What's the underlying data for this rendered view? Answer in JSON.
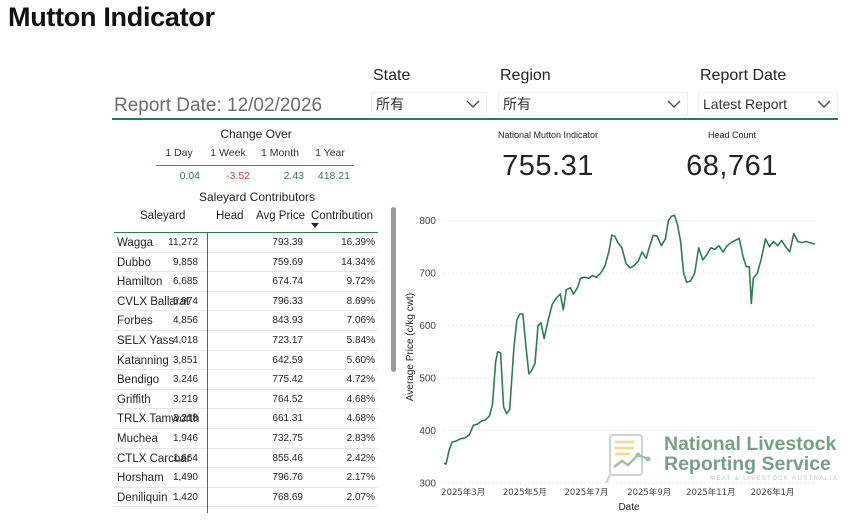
{
  "page": {
    "title": "Mutton Indicator"
  },
  "filters": {
    "state": {
      "label": "State",
      "value": "所有"
    },
    "region": {
      "label": "Region",
      "value": "所有"
    },
    "report_date": {
      "label": "Report Date",
      "value": "Latest Report"
    }
  },
  "report_date_text": "Report Date: 12/02/2026",
  "change_over": {
    "title": "Change Over",
    "headers": [
      "1 Day",
      "1 Week",
      "1 Month",
      "1 Year"
    ],
    "values": [
      "0.04",
      "-3.52",
      "2.43",
      "418.21"
    ],
    "value_colors": [
      "#2e7d4f",
      "#d0432f",
      "#2e7d4f",
      "#2e7d4f"
    ]
  },
  "kpis": {
    "indicator": {
      "label": "National Mutton Indicator",
      "value": "755.31"
    },
    "head_count": {
      "label": "Head Count",
      "value": "68,761"
    }
  },
  "table": {
    "title": "Saleyard Contributors",
    "columns": [
      "Saleyard",
      "Head",
      "Avg Price",
      "Contribution"
    ],
    "sorted_column": "Contribution",
    "rows": [
      [
        "Wagga",
        "11,272",
        "793.39",
        "16.39%"
      ],
      [
        "Dubbo",
        "9,858",
        "759.69",
        "14.34%"
      ],
      [
        "Hamilton",
        "6,685",
        "674.74",
        "9.72%"
      ],
      [
        "CVLX Ballarat",
        "5,974",
        "796.33",
        "8.69%"
      ],
      [
        "Forbes",
        "4,856",
        "843.93",
        "7.06%"
      ],
      [
        "SELX Yass",
        "4,018",
        "723.17",
        "5.84%"
      ],
      [
        "Katanning",
        "3,851",
        "642.59",
        "5.60%"
      ],
      [
        "Bendigo",
        "3,246",
        "775.42",
        "4.72%"
      ],
      [
        "Griffith",
        "3,219",
        "764.52",
        "4.68%"
      ],
      [
        "TRLX Tamworth",
        "3,218",
        "661.31",
        "4.68%"
      ],
      [
        "Muchea",
        "1,946",
        "732.75",
        "2.83%"
      ],
      [
        "CTLX Carcoar",
        "1,664",
        "855.46",
        "2.42%"
      ],
      [
        "Horsham",
        "1,490",
        "796.76",
        "2.17%"
      ],
      [
        "Deniliquin",
        "1,420",
        "768.69",
        "2.07%"
      ]
    ]
  },
  "chart_data": {
    "type": "line",
    "xlabel": "Date",
    "ylabel": "Average Price (c/kg cwt)",
    "ylim": [
      300,
      820
    ],
    "yticks": [
      300,
      400,
      500,
      600,
      700,
      800
    ],
    "xlim": [
      "2025-02-10",
      "2026-02-12"
    ],
    "xticks": [
      {
        "date": "2025-03-01",
        "label": "2025年3月"
      },
      {
        "date": "2025-05-01",
        "label": "2025年5月"
      },
      {
        "date": "2025-07-01",
        "label": "2025年7月"
      },
      {
        "date": "2025-09-01",
        "label": "2025年9月"
      },
      {
        "date": "2025-11-01",
        "label": "2025年11月"
      },
      {
        "date": "2026-01-01",
        "label": "2026年1月"
      }
    ],
    "grid": true,
    "line_color": "#2e7d4f",
    "series": [
      {
        "points": [
          [
            "2025-02-10",
            338
          ],
          [
            "2025-02-12",
            336
          ],
          [
            "2025-02-15",
            362
          ],
          [
            "2025-02-18",
            378
          ],
          [
            "2025-02-22",
            380
          ],
          [
            "2025-02-26",
            384
          ],
          [
            "2025-03-03",
            386
          ],
          [
            "2025-03-07",
            392
          ],
          [
            "2025-03-11",
            410
          ],
          [
            "2025-03-15",
            412
          ],
          [
            "2025-03-19",
            418
          ],
          [
            "2025-03-23",
            420
          ],
          [
            "2025-03-27",
            428
          ],
          [
            "2025-03-30",
            450
          ],
          [
            "2025-04-02",
            530
          ],
          [
            "2025-04-04",
            550
          ],
          [
            "2025-04-07",
            548
          ],
          [
            "2025-04-10",
            445
          ],
          [
            "2025-04-13",
            432
          ],
          [
            "2025-04-16",
            440
          ],
          [
            "2025-04-20",
            555
          ],
          [
            "2025-04-23",
            610
          ],
          [
            "2025-04-26",
            622
          ],
          [
            "2025-04-29",
            622
          ],
          [
            "2025-05-02",
            560
          ],
          [
            "2025-05-05",
            508
          ],
          [
            "2025-05-08",
            515
          ],
          [
            "2025-05-11",
            528
          ],
          [
            "2025-05-14",
            600
          ],
          [
            "2025-05-17",
            605
          ],
          [
            "2025-05-20",
            575
          ],
          [
            "2025-05-24",
            610
          ],
          [
            "2025-05-28",
            640
          ],
          [
            "2025-06-01",
            652
          ],
          [
            "2025-06-05",
            660
          ],
          [
            "2025-06-08",
            630
          ],
          [
            "2025-06-11",
            668
          ],
          [
            "2025-06-15",
            672
          ],
          [
            "2025-06-18",
            660
          ],
          [
            "2025-06-22",
            672
          ],
          [
            "2025-06-25",
            690
          ],
          [
            "2025-06-29",
            692
          ],
          [
            "2025-07-03",
            690
          ],
          [
            "2025-07-07",
            695
          ],
          [
            "2025-07-11",
            692
          ],
          [
            "2025-07-15",
            700
          ],
          [
            "2025-07-19",
            712
          ],
          [
            "2025-07-23",
            740
          ],
          [
            "2025-07-26",
            772
          ],
          [
            "2025-07-29",
            770
          ],
          [
            "2025-08-01",
            758
          ],
          [
            "2025-08-05",
            748
          ],
          [
            "2025-08-09",
            718
          ],
          [
            "2025-08-13",
            710
          ],
          [
            "2025-08-17",
            714
          ],
          [
            "2025-08-21",
            722
          ],
          [
            "2025-08-25",
            740
          ],
          [
            "2025-08-29",
            728
          ],
          [
            "2025-09-01",
            748
          ],
          [
            "2025-09-05",
            772
          ],
          [
            "2025-09-09",
            770
          ],
          [
            "2025-09-13",
            752
          ],
          [
            "2025-09-17",
            765
          ],
          [
            "2025-09-20",
            800
          ],
          [
            "2025-09-23",
            808
          ],
          [
            "2025-09-26",
            810
          ],
          [
            "2025-09-29",
            792
          ],
          [
            "2025-10-02",
            760
          ],
          [
            "2025-10-05",
            700
          ],
          [
            "2025-10-08",
            682
          ],
          [
            "2025-10-12",
            685
          ],
          [
            "2025-10-16",
            700
          ],
          [
            "2025-10-20",
            748
          ],
          [
            "2025-10-24",
            725
          ],
          [
            "2025-10-28",
            735
          ],
          [
            "2025-11-01",
            748
          ],
          [
            "2025-11-05",
            745
          ],
          [
            "2025-11-09",
            752
          ],
          [
            "2025-11-13",
            740
          ],
          [
            "2025-11-17",
            752
          ],
          [
            "2025-11-21",
            758
          ],
          [
            "2025-11-25",
            762
          ],
          [
            "2025-11-29",
            766
          ],
          [
            "2025-12-03",
            730
          ],
          [
            "2025-12-06",
            712
          ],
          [
            "2025-12-09",
            712
          ],
          [
            "2025-12-11",
            642
          ],
          [
            "2025-12-13",
            690
          ],
          [
            "2025-12-17",
            700
          ],
          [
            "2025-12-21",
            728
          ],
          [
            "2025-12-25",
            765
          ],
          [
            "2025-12-29",
            750
          ],
          [
            "2026-01-02",
            760
          ],
          [
            "2026-01-06",
            752
          ],
          [
            "2026-01-10",
            762
          ],
          [
            "2026-01-14",
            750
          ],
          [
            "2026-01-18",
            740
          ],
          [
            "2026-01-22",
            775
          ],
          [
            "2026-01-26",
            760
          ],
          [
            "2026-01-30",
            758
          ],
          [
            "2026-02-03",
            760
          ],
          [
            "2026-02-07",
            758
          ],
          [
            "2026-02-12",
            755
          ]
        ]
      }
    ]
  },
  "logo": {
    "line1": "National Livestock",
    "line2": "Reporting Service",
    "line3": "MEAT & LIVESTOCK AUSTRALIA"
  }
}
